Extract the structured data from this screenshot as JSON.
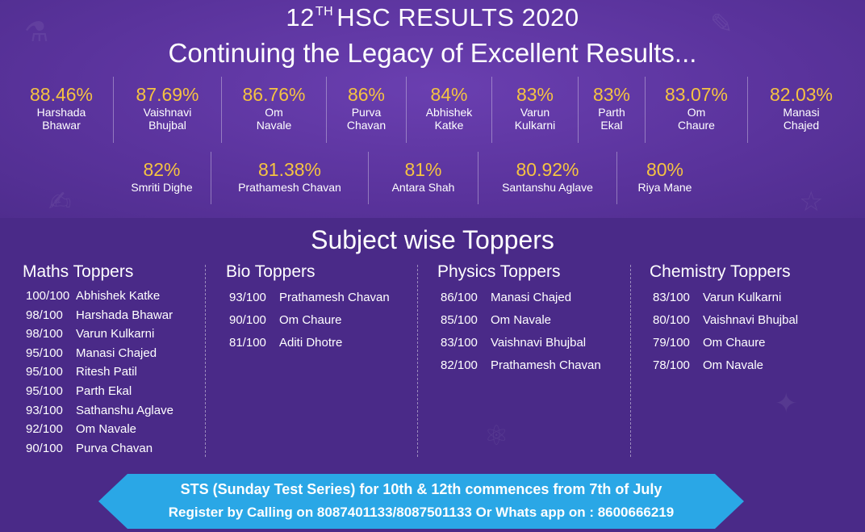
{
  "header": {
    "grade": "12",
    "grade_suffix": "TH",
    "title_rest": "HSC RESULTS 2020",
    "subtitle": "Continuing the Legacy of Excellent Results..."
  },
  "toppers_row1": [
    {
      "percent": "88.46%",
      "name1": "Harshada",
      "name2": "Bhawar"
    },
    {
      "percent": "87.69%",
      "name1": "Vaishnavi",
      "name2": "Bhujbal"
    },
    {
      "percent": "86.76%",
      "name1": "Om",
      "name2": "Navale"
    },
    {
      "percent": "86%",
      "name1": "Purva",
      "name2": "Chavan"
    },
    {
      "percent": "84%",
      "name1": "Abhishek",
      "name2": "Katke"
    },
    {
      "percent": "83%",
      "name1": "Varun",
      "name2": "Kulkarni"
    },
    {
      "percent": "83%",
      "name1": "Parth",
      "name2": "Ekal"
    },
    {
      "percent": "83.07%",
      "name1": "Om",
      "name2": "Chaure"
    },
    {
      "percent": "82.03%",
      "name1": "Manasi",
      "name2": "Chajed"
    }
  ],
  "toppers_row2": [
    {
      "percent": "82%",
      "name": "Smriti Dighe"
    },
    {
      "percent": "81.38%",
      "name": "Prathamesh Chavan"
    },
    {
      "percent": "81%",
      "name": "Antara Shah"
    },
    {
      "percent": "80.92%",
      "name": "Santanshu Aglave"
    },
    {
      "percent": "80%",
      "name": "Riya Mane"
    }
  ],
  "subject_section_title": "Subject wise Toppers",
  "subjects": [
    {
      "title": "Maths Toppers",
      "entries": [
        {
          "score": "100/100",
          "name": "Abhishek Katke"
        },
        {
          "score": "98/100",
          "name": "Harshada Bhawar"
        },
        {
          "score": "98/100",
          "name": "Varun Kulkarni"
        },
        {
          "score": "95/100",
          "name": "Manasi Chajed"
        },
        {
          "score": "95/100",
          "name": "Ritesh Patil"
        },
        {
          "score": "95/100",
          "name": "Parth Ekal"
        },
        {
          "score": "93/100",
          "name": "Sathanshu Aglave"
        },
        {
          "score": "92/100",
          "name": "Om Navale"
        },
        {
          "score": "90/100",
          "name": "Purva Chavan"
        }
      ]
    },
    {
      "title": "Bio Toppers",
      "entries": [
        {
          "score": "93/100",
          "name": "Prathamesh Chavan"
        },
        {
          "score": "90/100",
          "name": "Om Chaure"
        },
        {
          "score": "81/100",
          "name": "Aditi Dhotre"
        }
      ]
    },
    {
      "title": "Physics Toppers",
      "entries": [
        {
          "score": "86/100",
          "name": "Manasi Chajed"
        },
        {
          "score": "85/100",
          "name": "Om Navale"
        },
        {
          "score": "83/100",
          "name": "Vaishnavi Bhujbal"
        },
        {
          "score": "82/100",
          "name": "Prathamesh Chavan"
        }
      ]
    },
    {
      "title": "Chemistry Toppers",
      "entries": [
        {
          "score": "83/100",
          "name": "Varun Kulkarni"
        },
        {
          "score": "80/100",
          "name": "Vaishnavi Bhujbal"
        },
        {
          "score": "79/100",
          "name": "Om Chaure"
        },
        {
          "score": "78/100",
          "name": "Om Navale"
        }
      ]
    }
  ],
  "banner": {
    "line1": "STS (Sunday Test Series) for 10th & 12th commences from 7th of July",
    "line2": "Register by Calling on 8087401133/8087501133 Or Whats app on : 8600666219"
  },
  "colors": {
    "background": "#4b2a86",
    "percent": "#f5c342",
    "banner": "#2aa7e6"
  }
}
